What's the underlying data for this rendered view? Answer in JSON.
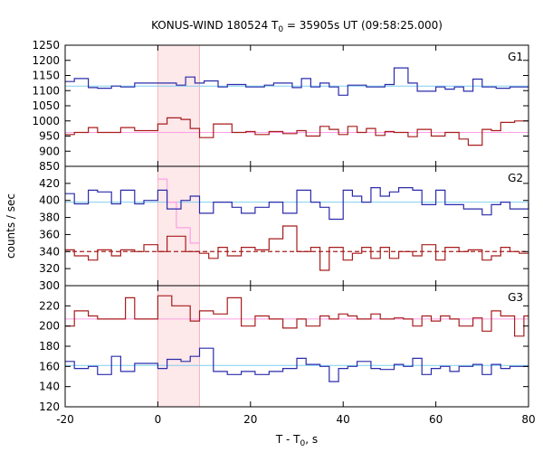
{
  "chart_data": {
    "type": "line",
    "title_main": "KONUS-WIND 180524 T",
    "title_sub": "0",
    "title_rest": " = 35905s UT (09:58:25.000)",
    "xlabel_main": "T - T",
    "xlabel_sub": "0",
    "xlabel_rest": ", s",
    "ylabel": "counts / sec",
    "xlim": [
      -20,
      80
    ],
    "x_ticks": [
      -20,
      0,
      20,
      40,
      60,
      80
    ],
    "x_tick_labels": [
      "-20",
      "0",
      "20",
      "40",
      "60",
      "80"
    ],
    "highlight_interval": [
      0,
      9
    ],
    "colors": {
      "blue": "#2b2bab",
      "red": "#a81c1c",
      "pink": "#ff9fe4",
      "cyan": "#7fd0f0",
      "shade": "#fde8ea"
    },
    "panels": [
      {
        "label": "G1",
        "ylim": [
          850,
          1250
        ],
        "y_ticks": [
          850,
          900,
          950,
          1000,
          1050,
          1100,
          1150,
          1200,
          1250
        ],
        "y_tick_labels": [
          "850",
          "900",
          "950",
          "1000",
          "1050",
          "1100",
          "1150",
          "1200",
          "1250"
        ],
        "reference_lines": [
          {
            "value": 1115,
            "color": "cyan",
            "dashed": false
          },
          {
            "value": 962,
            "color": "pink",
            "dashed": false
          }
        ],
        "series": [
          {
            "color": "blue",
            "edges": [
              -20,
              -18,
              -15,
              -13,
              -10,
              -8,
              -5,
              4,
              6,
              8,
              10,
              13,
              15,
              19,
              23,
              25,
              29,
              31,
              33,
              35,
              37,
              39,
              41,
              45,
              49,
              51,
              54,
              56,
              60,
              62,
              64,
              66,
              68,
              70,
              73,
              76,
              80
            ],
            "values": [
              1130,
              1140,
              1110,
              1108,
              1115,
              1112,
              1125,
              1118,
              1145,
              1125,
              1132,
              1112,
              1120,
              1112,
              1118,
              1125,
              1110,
              1140,
              1112,
              1125,
              1112,
              1085,
              1118,
              1112,
              1120,
              1175,
              1125,
              1098,
              1112,
              1105,
              1112,
              1098,
              1138,
              1112,
              1108,
              1112
            ]
          },
          {
            "color": "red",
            "edges": [
              -20,
              -18,
              -15,
              -13,
              -10,
              -8,
              -5,
              0,
              2,
              5,
              7,
              9,
              12,
              16,
              19,
              21,
              24,
              27,
              30,
              32,
              35,
              37,
              39,
              41,
              43,
              45,
              47,
              49,
              51,
              54,
              56,
              59,
              62,
              65,
              67,
              70,
              72,
              74,
              77,
              80
            ],
            "values": [
              955,
              962,
              978,
              962,
              962,
              978,
              968,
              990,
              1010,
              1005,
              975,
              945,
              990,
              962,
              965,
              955,
              965,
              958,
              968,
              950,
              982,
              972,
              955,
              982,
              962,
              975,
              952,
              965,
              962,
              948,
              972,
              950,
              962,
              940,
              920,
              972,
              968,
              995,
              1000
            ]
          }
        ]
      },
      {
        "label": "G2",
        "ylim": [
          300,
          440
        ],
        "y_ticks": [
          300,
          320,
          340,
          360,
          380,
          400,
          420
        ],
        "y_tick_labels": [
          "300",
          "320",
          "340",
          "360",
          "380",
          "400",
          "420"
        ],
        "reference_lines": [
          {
            "value": 398,
            "color": "cyan",
            "dashed": false
          },
          {
            "value": 340,
            "color": "red",
            "dashed": true
          }
        ],
        "series": [
          {
            "color": "pink",
            "edges": [
              0,
              2,
              4,
              7,
              9
            ],
            "values": [
              425,
              398,
              368,
              350
            ]
          },
          {
            "color": "blue",
            "edges": [
              -20,
              -18,
              -15,
              -13,
              -10,
              -8,
              -5,
              -3,
              0,
              2,
              5,
              7,
              9,
              12,
              16,
              18,
              21,
              24,
              27,
              30,
              33,
              35,
              37,
              40,
              42,
              44,
              46,
              48,
              50,
              52,
              55,
              57,
              60,
              62,
              66,
              70,
              72,
              74,
              76,
              80
            ],
            "values": [
              408,
              396,
              412,
              410,
              396,
              412,
              396,
              400,
              412,
              390,
              400,
              405,
              385,
              398,
              392,
              385,
              392,
              398,
              385,
              412,
              398,
              392,
              378,
              412,
              405,
              398,
              415,
              405,
              410,
              415,
              412,
              395,
              412,
              395,
              390,
              383,
              395,
              398,
              390,
              397
            ]
          },
          {
            "color": "red",
            "edges": [
              -20,
              -18,
              -15,
              -13,
              -10,
              -8,
              -5,
              -3,
              0,
              2,
              6,
              9,
              11,
              13,
              15,
              18,
              21,
              24,
              27,
              30,
              33,
              35,
              37,
              40,
              42,
              44,
              46,
              48,
              50,
              52,
              55,
              57,
              60,
              62,
              65,
              67,
              70,
              72,
              74,
              76,
              78,
              80
            ],
            "values": [
              342,
              335,
              330,
              342,
              335,
              342,
              340,
              348,
              340,
              358,
              340,
              338,
              332,
              345,
              335,
              345,
              342,
              355,
              370,
              340,
              345,
              318,
              345,
              330,
              338,
              345,
              332,
              345,
              332,
              340,
              335,
              348,
              330,
              345,
              340,
              342,
              330,
              335,
              345,
              340,
              338
            ]
          }
        ]
      },
      {
        "label": "G3",
        "ylim": [
          120,
          240
        ],
        "y_ticks": [
          120,
          140,
          160,
          180,
          200,
          220
        ],
        "y_tick_labels": [
          "120",
          "140",
          "160",
          "180",
          "200",
          "220"
        ],
        "reference_lines": [
          {
            "value": 161,
            "color": "cyan",
            "dashed": false
          },
          {
            "value": 207,
            "color": "pink",
            "dashed": false
          }
        ],
        "series": [
          {
            "color": "red",
            "edges": [
              -20,
              -18,
              -15,
              -13,
              -7,
              -5,
              0,
              3,
              7,
              9,
              12,
              15,
              18,
              21,
              24,
              27,
              30,
              32,
              35,
              37,
              39,
              41,
              43,
              46,
              48,
              51,
              53,
              55,
              57,
              59,
              61,
              63,
              65,
              68,
              70,
              72,
              74,
              77,
              79,
              80
            ],
            "values": [
              200,
              215,
              210,
              207,
              228,
              207,
              230,
              220,
              205,
              215,
              212,
              228,
              200,
              210,
              207,
              198,
              207,
              200,
              210,
              207,
              212,
              210,
              207,
              212,
              207,
              208,
              207,
              200,
              210,
              205,
              210,
              207,
              200,
              208,
              195,
              215,
              210,
              190,
              210
            ]
          },
          {
            "color": "blue",
            "edges": [
              -20,
              -18,
              -15,
              -13,
              -10,
              -8,
              -5,
              0,
              2,
              5,
              7,
              9,
              12,
              15,
              18,
              21,
              24,
              27,
              30,
              32,
              35,
              37,
              39,
              41,
              43,
              46,
              48,
              51,
              53,
              55,
              57,
              59,
              61,
              63,
              65,
              68,
              70,
              72,
              74,
              76,
              80
            ],
            "values": [
              165,
              158,
              160,
              152,
              170,
              155,
              163,
              158,
              167,
              165,
              170,
              178,
              155,
              152,
              155,
              152,
              155,
              158,
              168,
              162,
              160,
              145,
              158,
              160,
              165,
              158,
              157,
              162,
              160,
              168,
              152,
              158,
              160,
              155,
              160,
              162,
              152,
              162,
              158,
              160
            ]
          }
        ]
      }
    ]
  }
}
